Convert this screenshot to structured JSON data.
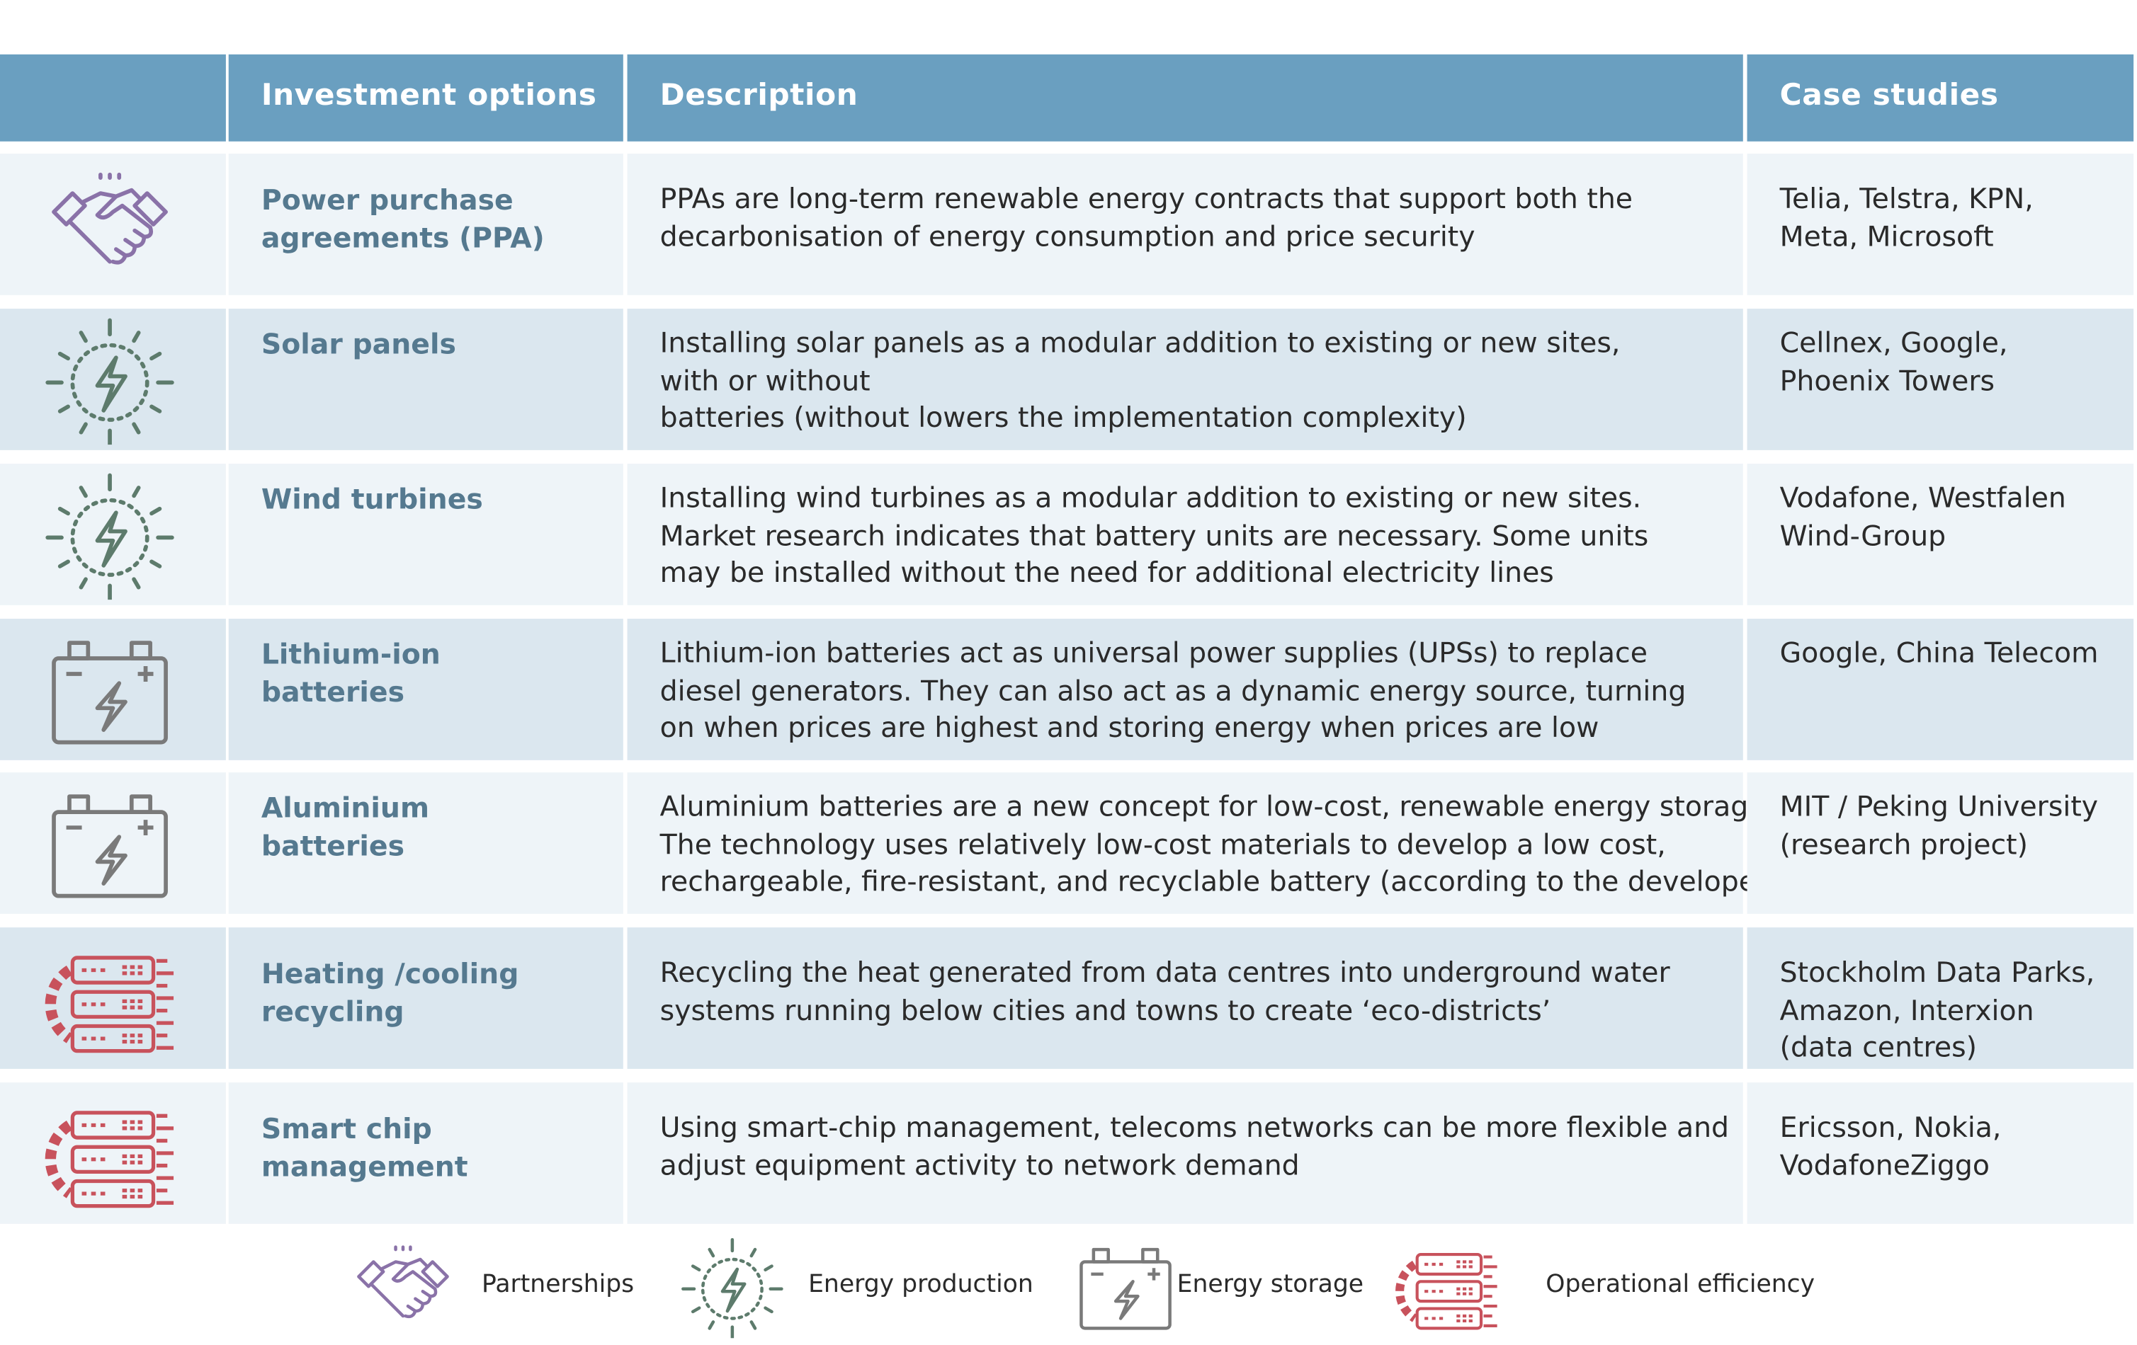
{
  "table": {
    "header": [
      "Investment options",
      "Description",
      "Case studies"
    ],
    "rows": [
      {
        "option": [
          "Power purchase",
          "agreements (PPA)"
        ],
        "description": [
          "PPAs are long-term renewable energy contracts that support both the",
          "decarbonisation of energy consumption and price security"
        ],
        "cases": [
          "Telia, Telstra, KPN,",
          "Meta, Microsoft"
        ]
      },
      {
        "option": [
          "Solar panels"
        ],
        "description": [
          "Installing solar panels as a modular addition to existing or new sites,",
          "with or without",
          "batteries (without lowers the implementation complexity)"
        ],
        "cases": [
          "Cellnex, Google,",
          "Phoenix Towers"
        ]
      },
      {
        "option": [
          "Wind turbines"
        ],
        "description": [
          "Installing wind turbines as a modular addition to existing or new sites.",
          "Market research indicates that battery units are necessary. Some units",
          "may be installed without the need for additional electricity lines"
        ],
        "cases": [
          "Vodafone, Westfalen",
          "Wind-Group"
        ]
      },
      {
        "option": [
          "Lithium-ion",
          "batteries"
        ],
        "description": [
          "Lithium-ion batteries act as universal power supplies (UPSs) to replace",
          "diesel generators. They can also act as a dynamic energy source, turning",
          "on when prices are highest and storing energy when prices are low"
        ],
        "cases": [
          "Google, China Telecom"
        ]
      },
      {
        "option": [
          "Aluminium",
          "batteries"
        ],
        "description": [
          "Aluminium batteries are a new concept for low-cost, renewable energy storage.",
          "The technology uses relatively low-cost materials to develop a low cost,",
          "rechargeable, fire-resistant, and recyclable battery (according to the developers)"
        ],
        "cases": [
          "MIT / Peking University",
          "(research project)"
        ]
      },
      {
        "option": [
          "Heating /cooling",
          "recycling"
        ],
        "description": [
          "Recycling the heat generated from data centres into underground water",
          "systems running below cities and towns to create ‘eco-districts’"
        ],
        "cases": [
          "Stockholm Data Parks,",
          "Amazon, Interxion",
          "(data centres)"
        ]
      },
      {
        "option": [
          "Smart chip",
          "management"
        ],
        "description": [
          "Using smart-chip management, telecoms networks can be more flexible and",
          "adjust equipment activity to network demand"
        ],
        "cases": [
          "Ericsson, Nokia,",
          "VodafoneZiggo"
        ]
      }
    ]
  },
  "legend": [
    "Partnerships",
    "Energy production",
    "Energy storage",
    "Operational efficiency"
  ]
}
